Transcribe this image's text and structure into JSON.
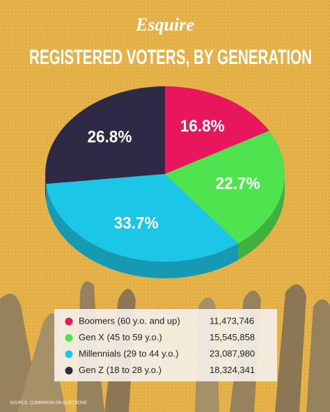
{
  "chart_data": {
    "type": "pie3d",
    "brand": "Esquire",
    "title": "REGISTERED VOTERS, BY GENERATION",
    "categories": [
      "Boomers (60 y.o. and up)",
      "Gen X (45 to 59 y.o.)",
      "Millennials (29 to 44 y.o.)",
      "Gen Z (18 to 28 y.o.)"
    ],
    "values": [
      16.8,
      22.7,
      33.7,
      26.8
    ],
    "value_labels": [
      "16.8%",
      "22.7%",
      "33.7%",
      "26.8%"
    ],
    "colors": [
      "#e8175d",
      "#4fe34f",
      "#1cc6e6",
      "#2e2a45"
    ],
    "voters": [
      "11,473,746",
      "15,545,858",
      "23,087,980",
      "18,324,341"
    ],
    "source": "SOURCE: COMMISION ON ELECTIONS"
  }
}
